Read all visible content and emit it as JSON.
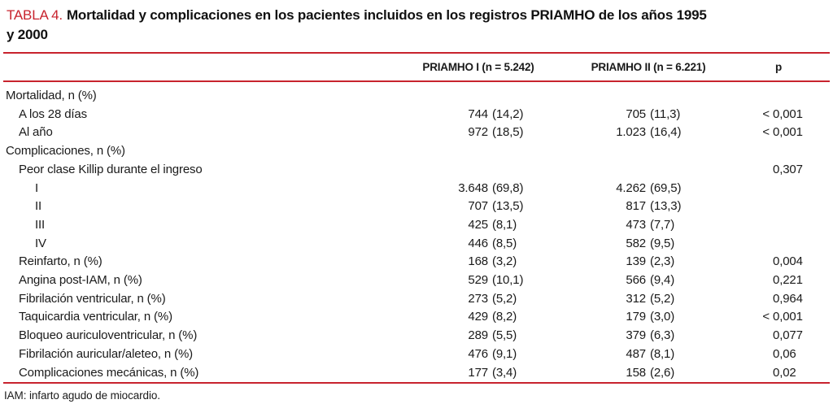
{
  "colors": {
    "accent_red": "#c8232e",
    "text": "#1a1a1a",
    "background": "#ffffff"
  },
  "title": {
    "label": "TABLA 4.",
    "line1": "Mortalidad y complicaciones en los pacientes incluidos en los registros PRIAMHO de los años 1995",
    "line2": "y 2000"
  },
  "table": {
    "columns": {
      "label": "",
      "col1": "PRIAMHO I (n = 5.242)",
      "col2": "PRIAMHO II (n = 6.221)",
      "colp": "p"
    },
    "rows": [
      {
        "label": "Mortalidad, n (%)",
        "indent": 0,
        "v1n": "",
        "v1p": "",
        "v2n": "",
        "v2p": "",
        "p_prefix": "",
        "p": ""
      },
      {
        "label": "A los 28 días",
        "indent": 1,
        "v1n": "744",
        "v1p": "(14,2)",
        "v2n": "705",
        "v2p": "(11,3)",
        "p_prefix": "<",
        "p": "0,001"
      },
      {
        "label": "Al año",
        "indent": 1,
        "v1n": "972",
        "v1p": "(18,5)",
        "v2n": "1.023",
        "v2p": "(16,4)",
        "p_prefix": "<",
        "p": "0,001"
      },
      {
        "label": "Complicaciones, n (%)",
        "indent": 0,
        "v1n": "",
        "v1p": "",
        "v2n": "",
        "v2p": "",
        "p_prefix": "",
        "p": ""
      },
      {
        "label": "Peor clase Killip durante el ingreso",
        "indent": 1,
        "v1n": "",
        "v1p": "",
        "v2n": "",
        "v2p": "",
        "p_prefix": "",
        "p": "0,307"
      },
      {
        "label": "I",
        "indent": 2,
        "v1n": "3.648",
        "v1p": "(69,8)",
        "v2n": "4.262",
        "v2p": "(69,5)",
        "p_prefix": "",
        "p": ""
      },
      {
        "label": "II",
        "indent": 2,
        "v1n": "707",
        "v1p": "(13,5)",
        "v2n": "817",
        "v2p": "(13,3)",
        "p_prefix": "",
        "p": ""
      },
      {
        "label": "III",
        "indent": 2,
        "v1n": "425",
        "v1p": "(8,1)",
        "v2n": "473",
        "v2p": "(7,7)",
        "p_prefix": "",
        "p": ""
      },
      {
        "label": "IV",
        "indent": 2,
        "v1n": "446",
        "v1p": "(8,5)",
        "v2n": "582",
        "v2p": "(9,5)",
        "p_prefix": "",
        "p": ""
      },
      {
        "label": "Reinfarto, n (%)",
        "indent": 1,
        "v1n": "168",
        "v1p": "(3,2)",
        "v2n": "139",
        "v2p": "(2,3)",
        "p_prefix": "",
        "p": "0,004"
      },
      {
        "label": "Angina post-IAM, n (%)",
        "indent": 1,
        "v1n": "529",
        "v1p": "(10,1)",
        "v2n": "566",
        "v2p": "(9,4)",
        "p_prefix": "",
        "p": "0,221"
      },
      {
        "label": "Fibrilación ventricular, n (%)",
        "indent": 1,
        "v1n": "273",
        "v1p": "(5,2)",
        "v2n": "312",
        "v2p": "(5,2)",
        "p_prefix": "",
        "p": "0,964"
      },
      {
        "label": "Taquicardia ventricular, n (%)",
        "indent": 1,
        "v1n": "429",
        "v1p": "(8,2)",
        "v2n": "179",
        "v2p": "(3,0)",
        "p_prefix": "<",
        "p": "0,001"
      },
      {
        "label": "Bloqueo auriculoventricular, n (%)",
        "indent": 1,
        "v1n": "289",
        "v1p": "(5,5)",
        "v2n": "379",
        "v2p": "(6,3)",
        "p_prefix": "",
        "p": "0,077"
      },
      {
        "label": "Fibrilación auricular/aleteo, n (%)",
        "indent": 1,
        "v1n": "476",
        "v1p": "(9,1)",
        "v2n": "487",
        "v2p": "(8,1)",
        "p_prefix": "",
        "p": "0,06"
      },
      {
        "label": "Complicaciones mecánicas, n (%)",
        "indent": 1,
        "v1n": "177",
        "v1p": "(3,4)",
        "v2n": "158",
        "v2p": "(2,6)",
        "p_prefix": "",
        "p": "0,02"
      }
    ]
  },
  "footnote": "IAM: infarto agudo de miocardio."
}
